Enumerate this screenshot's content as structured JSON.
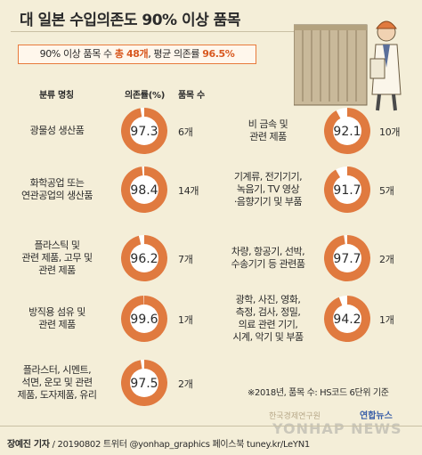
{
  "title": "대 일본 수입의존도 90% 이상 품목",
  "subtitle": {
    "pre": "90% 이상 품목 수 ",
    "count": "총 48개",
    "mid": ", 평균 의존률 ",
    "avg": "96.5%"
  },
  "headers": {
    "category": "분류 명칭",
    "rate": "의존률(%)",
    "count": "품목 수"
  },
  "colors": {
    "donut": "#e07a3f",
    "donut_rest": "#ffffff",
    "center": "#ffffff",
    "accent": "#d8581f",
    "background": "#f4eed8"
  },
  "chart_data": {
    "type": "pie",
    "items": [
      {
        "label": [
          "광물성 생산품"
        ],
        "rate": 97.3,
        "rate_text": "97.3",
        "count": "6개"
      },
      {
        "label": [
          "화학공업 또는",
          "연관공업의 생산품"
        ],
        "rate": 98.4,
        "rate_text": "98.4",
        "count": "14개"
      },
      {
        "label": [
          "플라스틱 및",
          "관련 제품, 고무 및",
          "관련 제품"
        ],
        "rate": 96.2,
        "rate_text": "96.2",
        "count": "7개"
      },
      {
        "label": [
          "방직용 섬유 및",
          "관련 제품"
        ],
        "rate": 99.6,
        "rate_text": "99.6",
        "count": "1개"
      },
      {
        "label": [
          "플라스터, 시멘트,",
          "석면, 운모 및 관련",
          "제품, 도자제품, 유리"
        ],
        "rate": 97.5,
        "rate_text": "97.5",
        "count": "2개"
      },
      {
        "label": [
          "비 금속 및",
          "관련 제품"
        ],
        "rate": 92.1,
        "rate_text": "92.1",
        "count": "10개"
      },
      {
        "label": [
          "기계류, 전기기기,",
          "녹음기, TV 영상",
          "·음향기기 및 부품"
        ],
        "rate": 91.7,
        "rate_text": "91.7",
        "count": "5개"
      },
      {
        "label": [
          "차량, 항공기, 선박,",
          "수송기기 등 관련품"
        ],
        "rate": 97.7,
        "rate_text": "97.7",
        "count": "2개"
      },
      {
        "label": [
          "광학, 사진, 영화,",
          "측정, 검사, 정밀,",
          "의료 관련 기기,",
          "시계, 악기 및 부품"
        ],
        "rate": 94.2,
        "rate_text": "94.2",
        "count": "1개"
      }
    ]
  },
  "footnote": "※2018년, 품목 수: HS코드 6단위 기준",
  "credit": {
    "author": "장예진 기자",
    "rest": " / 20190802 트위터 @yonhap_graphics 페이스북 tuney.kr/LeYN1"
  },
  "watermark": {
    "org": "한국경제연구원",
    "news": "연합뉴스",
    "agency": "YONHAP NEWS"
  }
}
